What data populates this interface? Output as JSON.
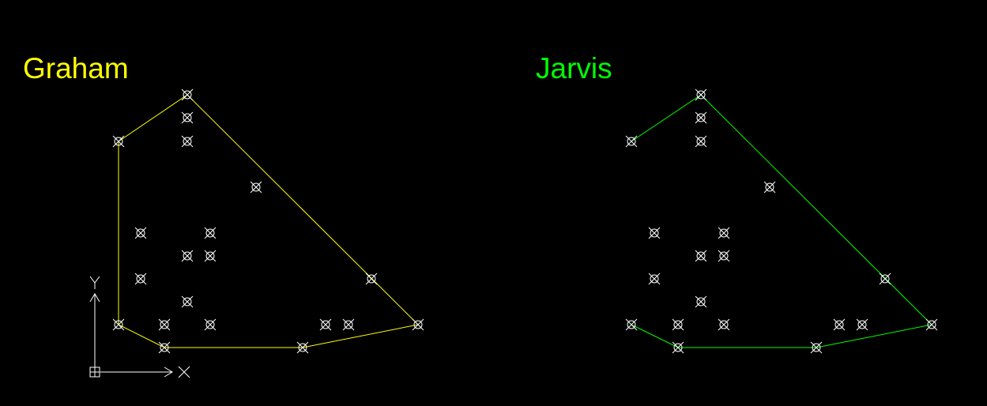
{
  "colors": {
    "background": "#000000",
    "graham": "#ffff00",
    "jarvis": "#00ff00",
    "points": "#ffffff"
  },
  "graham": {
    "title": "Graham",
    "points": [
      [
        237,
        120
      ],
      [
        237,
        149
      ],
      [
        237,
        179
      ],
      [
        150,
        179
      ],
      [
        324,
        237
      ],
      [
        178,
        295
      ],
      [
        266,
        295
      ],
      [
        237,
        324
      ],
      [
        266,
        324
      ],
      [
        178,
        353
      ],
      [
        470,
        353
      ],
      [
        237,
        382
      ],
      [
        150,
        411
      ],
      [
        208,
        411
      ],
      [
        266,
        411
      ],
      [
        412,
        411
      ],
      [
        441,
        411
      ],
      [
        529,
        411
      ],
      [
        208,
        440
      ],
      [
        383,
        440
      ]
    ],
    "hull": [
      [
        237,
        120
      ],
      [
        529,
        411
      ],
      [
        383,
        440
      ],
      [
        208,
        440
      ],
      [
        150,
        411
      ],
      [
        150,
        179
      ],
      [
        237,
        120
      ]
    ]
  },
  "jarvis": {
    "title": "Jarvis",
    "points": [
      [
        887,
        120
      ],
      [
        887,
        149
      ],
      [
        887,
        179
      ],
      [
        799,
        179
      ],
      [
        974,
        237
      ],
      [
        828,
        295
      ],
      [
        916,
        295
      ],
      [
        887,
        324
      ],
      [
        916,
        324
      ],
      [
        828,
        353
      ],
      [
        1120,
        353
      ],
      [
        887,
        382
      ],
      [
        799,
        411
      ],
      [
        858,
        411
      ],
      [
        916,
        411
      ],
      [
        1062,
        411
      ],
      [
        1091,
        411
      ],
      [
        1179,
        411
      ],
      [
        858,
        440
      ],
      [
        1033,
        440
      ]
    ],
    "hull": [
      [
        799,
        179
      ],
      [
        887,
        120
      ],
      [
        1179,
        411
      ],
      [
        1033,
        440
      ],
      [
        858,
        440
      ],
      [
        799,
        411
      ]
    ]
  },
  "ucs": {
    "y_label": "Y",
    "x_label": "X"
  }
}
